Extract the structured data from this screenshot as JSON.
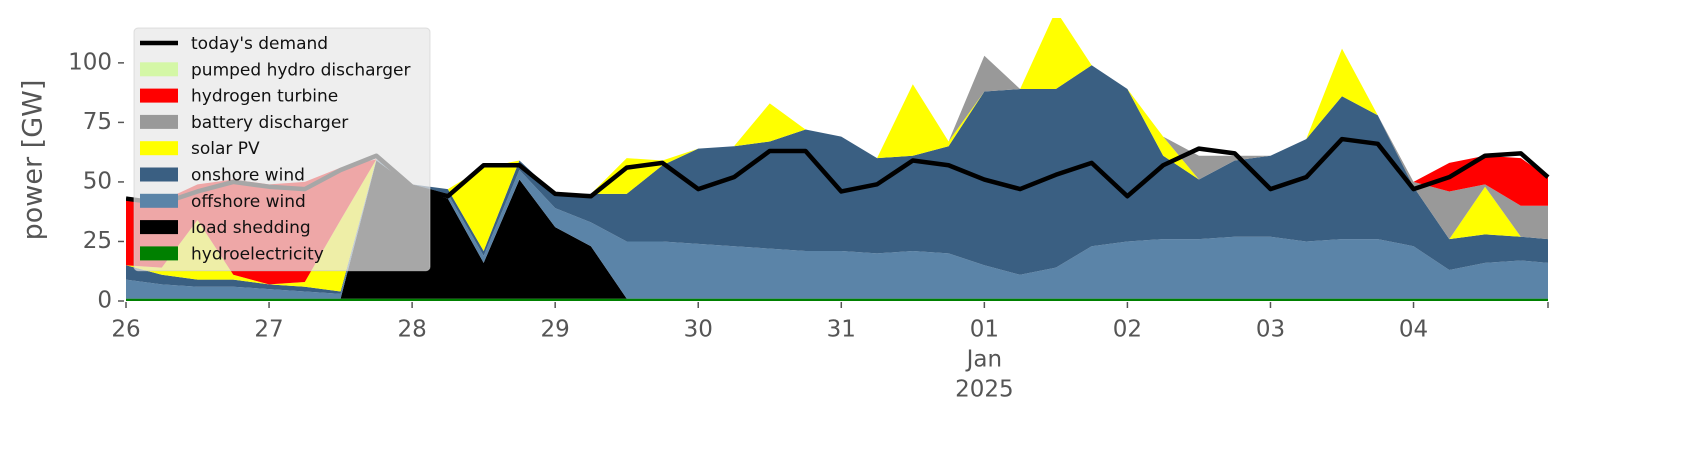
{
  "chart_data": {
    "type": "area",
    "stacked": true,
    "ylabel": "power [GW]",
    "x": [
      0,
      0.25,
      0.5,
      0.75,
      1,
      1.25,
      1.5,
      1.75,
      2,
      2.25,
      2.5,
      2.75,
      3,
      3.25,
      3.5,
      3.75,
      4,
      4.25,
      4.5,
      4.75,
      5,
      5.25,
      5.5,
      5.75,
      6,
      6.25,
      6.5,
      6.75,
      7,
      7.25,
      7.5,
      7.75,
      8,
      8.25,
      8.5,
      8.75,
      9,
      9.25,
      9.5,
      9.75,
      9.94
    ],
    "xlim": [
      0,
      9.94
    ],
    "xticks": [
      {
        "value": 0,
        "label": "26"
      },
      {
        "value": 1,
        "label": "27"
      },
      {
        "value": 2,
        "label": "28"
      },
      {
        "value": 3,
        "label": "29"
      },
      {
        "value": 4,
        "label": "30"
      },
      {
        "value": 5,
        "label": "31"
      },
      {
        "value": 6,
        "label": "01"
      },
      {
        "value": 7,
        "label": "02"
      },
      {
        "value": 8,
        "label": "03"
      },
      {
        "value": 9,
        "label": "04"
      }
    ],
    "x_sublabels": {
      "tick": 6,
      "lines": [
        "Jan",
        "2025"
      ]
    },
    "ylim": [
      0,
      118
    ],
    "yticks": [
      0,
      25,
      50,
      75,
      100
    ],
    "grid": false,
    "legend": "upper left",
    "demand": {
      "name": "today's demand",
      "color": "#000000",
      "values": [
        43,
        41,
        46,
        50,
        48,
        47,
        55,
        61,
        48,
        44,
        57,
        57,
        45,
        44,
        56,
        58,
        47,
        52,
        63,
        63,
        46,
        49,
        59,
        57,
        51,
        47,
        53,
        58,
        44,
        57,
        64,
        62,
        47,
        52,
        68,
        66,
        47,
        52,
        61,
        62,
        52
      ]
    },
    "series": [
      {
        "name": "pumped hydro discharger",
        "color": "#d4f7a6",
        "values": [
          0,
          0,
          0,
          0,
          0,
          0,
          0,
          0,
          0,
          0,
          0,
          0,
          0,
          0,
          0,
          0,
          0,
          0,
          0,
          0,
          0,
          0,
          0,
          0,
          0,
          0,
          0,
          0,
          0,
          0,
          0,
          0,
          0,
          0,
          0,
          0,
          0,
          0,
          0,
          0,
          0
        ]
      },
      {
        "name": "hydrogen turbine",
        "color": "#ff0000",
        "values": [
          28,
          28,
          15,
          40,
          42,
          42,
          22,
          0,
          0,
          0,
          0,
          0,
          0,
          0,
          0,
          0,
          0,
          0,
          0,
          0,
          0,
          0,
          0,
          0,
          0,
          0,
          0,
          0,
          0,
          0,
          0,
          0,
          0,
          0,
          0,
          0,
          0,
          12,
          12,
          20,
          12
        ]
      },
      {
        "name": "battery discharger",
        "color": "#999999",
        "values": [
          0,
          0,
          0,
          0,
          0,
          0,
          0,
          0,
          0,
          0,
          0,
          0,
          0,
          0,
          0,
          0,
          0,
          0,
          0,
          0,
          0,
          0,
          0,
          0,
          15,
          0,
          0,
          0,
          0,
          0,
          10,
          2,
          0,
          0,
          0,
          0,
          2,
          20,
          1,
          13,
          14
        ]
      },
      {
        "name": "solar PV",
        "color": "#ffff00",
        "values": [
          0,
          3,
          25,
          2,
          0,
          2,
          30,
          0,
          0,
          0,
          35,
          0,
          0,
          0,
          15,
          2,
          0,
          0,
          16,
          0,
          0,
          0,
          30,
          2,
          0,
          0,
          33,
          0,
          0,
          8,
          0,
          0,
          0,
          0,
          20,
          0,
          0,
          0,
          20,
          0,
          0
        ]
      },
      {
        "name": "onshore wind",
        "color": "#3a5f82",
        "values": [
          6,
          4,
          3,
          3,
          2,
          2,
          1,
          0,
          0,
          2,
          2,
          4,
          6,
          12,
          20,
          32,
          40,
          42,
          45,
          51,
          48,
          40,
          40,
          45,
          73,
          78,
          75,
          76,
          64,
          35,
          25,
          32,
          34,
          43,
          60,
          52,
          25,
          13,
          12,
          10,
          10
        ]
      },
      {
        "name": "offshore wind",
        "color": "#5b84a8",
        "values": [
          8,
          6,
          5,
          5,
          4,
          3,
          2,
          0.5,
          1,
          2,
          3,
          4,
          8,
          10,
          24,
          24,
          23,
          22,
          21,
          20,
          20,
          19,
          20,
          19,
          14,
          10,
          13,
          22,
          24,
          25,
          25,
          26,
          26,
          24,
          25,
          25,
          22,
          12,
          15,
          16,
          15
        ]
      },
      {
        "name": "load shedding",
        "color": "#000000",
        "values": [
          0,
          0,
          0,
          0,
          0,
          0,
          0,
          58,
          47,
          42,
          15,
          50,
          30,
          22,
          0,
          0,
          0,
          0,
          0,
          0,
          0,
          0,
          0,
          0,
          0,
          0,
          0,
          0,
          0,
          0,
          0,
          0,
          0,
          0,
          0,
          0,
          0,
          0,
          0,
          0,
          0
        ]
      },
      {
        "name": "hydroelectricity",
        "color": "#008000",
        "values": [
          1,
          1,
          1,
          1,
          1,
          1,
          1,
          1,
          1,
          1,
          1,
          1,
          1,
          1,
          1,
          1,
          1,
          1,
          1,
          1,
          1,
          1,
          1,
          1,
          1,
          1,
          1,
          1,
          1,
          1,
          1,
          1,
          1,
          1,
          1,
          1,
          1,
          1,
          1,
          1,
          1
        ]
      }
    ]
  }
}
